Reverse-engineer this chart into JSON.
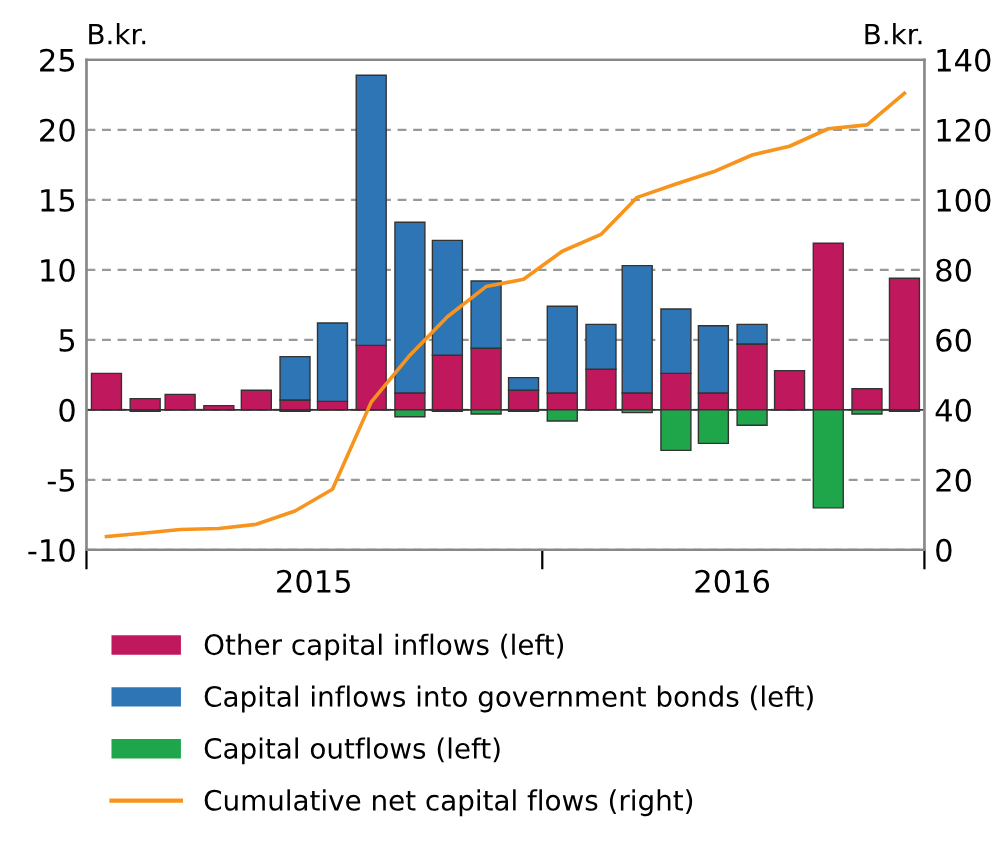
{
  "chart_data": {
    "type": "bar",
    "stacked": true,
    "ylabel": "B.kr.",
    "y2label": "B.kr.",
    "x": [
      "2015-01",
      "2015-02",
      "2015-03",
      "2015-04",
      "2015-05",
      "2015-06",
      "2015-07",
      "2015-08",
      "2015-09",
      "2015-10",
      "2015-11",
      "2015-12",
      "2016-01",
      "2016-02",
      "2016-03",
      "2016-04",
      "2016-05",
      "2016-06",
      "2016-07",
      "2016-08",
      "2016-09",
      "2016-10"
    ],
    "xlim": [
      "2014-12-16",
      "2016-10-17"
    ],
    "xticks": [
      {
        "value": "2014-12-16",
        "label": null
      },
      {
        "value": "2015-06-16",
        "label": "2015"
      },
      {
        "value": "2015-12-16",
        "label": null
      },
      {
        "value": "2016-05-16",
        "label": "2016"
      },
      {
        "value": "2016-10-17",
        "label": null
      }
    ],
    "ylim": [
      -10,
      25
    ],
    "yticks": [
      -10,
      -5,
      0,
      5,
      10,
      15,
      20,
      25
    ],
    "y2lim": [
      0,
      140
    ],
    "y2ticks": [
      0,
      20,
      40,
      60,
      80,
      100,
      120,
      140
    ],
    "grid": "y",
    "legend": "bottom",
    "series": [
      {
        "name": "Other capital inflows (left)",
        "color": "#c0185c",
        "values": [
          2.6,
          0.8,
          1.1,
          0.3,
          1.4,
          0.7,
          0.6,
          4.6,
          1.2,
          3.9,
          4.4,
          1.4,
          1.2,
          2.9,
          1.2,
          2.6,
          1.2,
          4.7,
          2.8,
          11.9,
          1.5,
          9.4
        ]
      },
      {
        "name": "Capital inflows into government bonds (left)",
        "color": "#2e75b6",
        "values": [
          null,
          null,
          null,
          null,
          null,
          3.1,
          5.6,
          19.3,
          12.2,
          8.2,
          4.8,
          0.9,
          6.2,
          3.2,
          9.1,
          4.6,
          4.8,
          1.4,
          null,
          null,
          null,
          null
        ]
      },
      {
        "name": "Capital outflows (left)",
        "color": "#1fa64a",
        "values": [
          null,
          -0.1,
          null,
          null,
          null,
          -0.1,
          null,
          null,
          -0.5,
          -0.1,
          -0.3,
          -0.1,
          -0.8,
          null,
          -0.2,
          -2.9,
          -2.4,
          -1.1,
          null,
          -7.0,
          -0.3,
          -0.1
        ]
      },
      {
        "name": "Cumulative net capital flows (right)",
        "color": "#f7941d",
        "type": "line",
        "axis": "y2",
        "values": [
          3.8,
          4.8,
          5.8,
          6.1,
          7.3,
          11.1,
          17.3,
          42.2,
          55.6,
          66.6,
          75.2,
          77.3,
          85.3,
          90.1,
          100.7,
          104.5,
          108,
          112.8,
          115.3,
          120.3,
          121.4,
          130.4
        ]
      }
    ]
  }
}
